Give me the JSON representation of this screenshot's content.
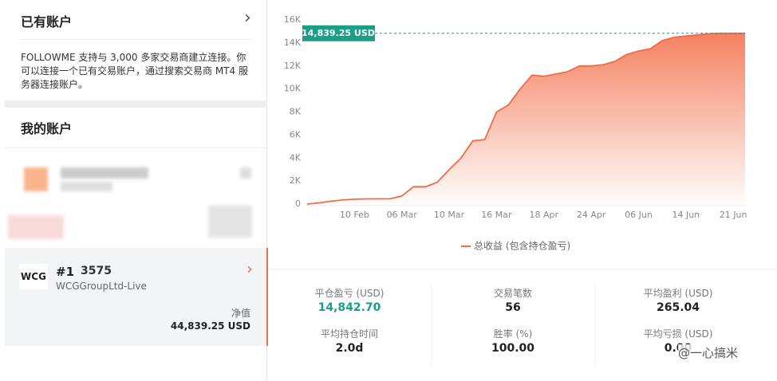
{
  "panel": {
    "linked_title": "已有账户",
    "chevron": "›",
    "intro": "FOLLOWME 支持与 3,000 多家交易商建立连接。你可以连接一个已有交易账户，通过搜索交易商 MT4 服务器连接账户。",
    "my_title": "我的账户",
    "account": {
      "logo": "WCG",
      "number": "#1",
      "id": "3575",
      "server": "WCGGroupLtd-Live",
      "equity_label": "净值",
      "equity": "44,839.25 USD"
    }
  },
  "chart_data": {
    "type": "area",
    "categories": [
      null,
      null,
      null,
      null,
      "10 Feb",
      null,
      null,
      null,
      "06 Mar",
      null,
      null,
      null,
      "10 Mar",
      null,
      null,
      null,
      "16 Mar",
      null,
      null,
      null,
      "18 Apr",
      null,
      null,
      null,
      "24 Apr",
      null,
      null,
      null,
      "06 Jun",
      null,
      null,
      null,
      "14 Jun",
      null,
      null,
      null,
      "21 Jun",
      null
    ],
    "series": [
      {
        "name": "总收益 (包含持仓盈亏)",
        "color": "#f26b45",
        "values": [
          0,
          100,
          250,
          350,
          420,
          450,
          450,
          460,
          700,
          1500,
          1500,
          1900,
          3000,
          4000,
          5500,
          5600,
          8000,
          8600,
          10000,
          11200,
          11100,
          11300,
          11500,
          12000,
          12000,
          12100,
          12400,
          13000,
          13300,
          13500,
          14200,
          14500,
          14600,
          14700,
          14800,
          14839.25,
          14839.25,
          14839.25
        ]
      }
    ],
    "ylim": [
      0,
      16000
    ],
    "yticks": [
      0,
      {
        "value": 2000,
        "label": "2K"
      },
      {
        "value": 4000,
        "label": "4K"
      },
      {
        "value": 6000,
        "label": "6K"
      },
      {
        "value": 8000,
        "label": "8K"
      },
      {
        "value": 10000,
        "label": "10K"
      },
      {
        "value": 12000,
        "label": "12K"
      },
      {
        "value": 14000,
        "label": "14K"
      },
      {
        "value": 16000,
        "label": "16K"
      }
    ],
    "grid": false,
    "annotation": {
      "value": 14839.25,
      "label": "14,839.25 USD",
      "color": "#1a9e86"
    }
  },
  "stats": [
    {
      "label": "平仓盈亏 (USD)",
      "value": "14,842.70"
    },
    {
      "label": "交易笔数",
      "value": "56"
    },
    {
      "label": "平均盈利 (USD)",
      "value": "265.04"
    },
    {
      "label": "平均持仓时间",
      "value": "2.0d"
    },
    {
      "label": "胜率 (%)",
      "value": "100.00"
    },
    {
      "label": "平均亏损 (USD)",
      "value": "0.00"
    }
  ],
  "watermark": "@一心搞米"
}
